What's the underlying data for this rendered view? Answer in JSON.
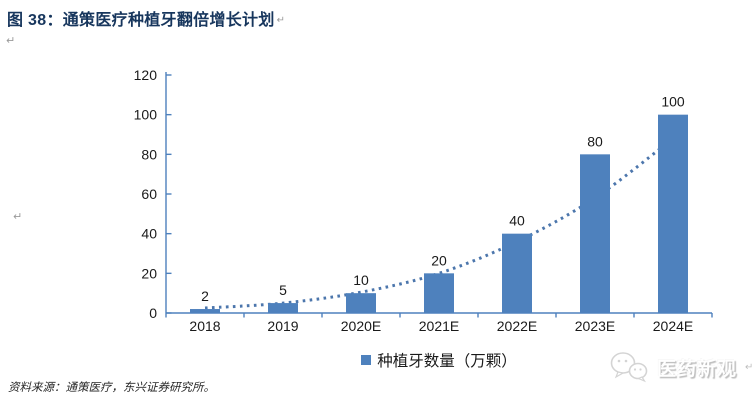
{
  "header": {
    "title": "图 38：通策医疗种植牙翻倍增长计划"
  },
  "marks": {
    "return_mark": "↵"
  },
  "chart_data": {
    "type": "bar",
    "title": "通策医疗种植牙翻倍增长计划",
    "categories": [
      "2018",
      "2019",
      "2020E",
      "2021E",
      "2022E",
      "2023E",
      "2024E"
    ],
    "series": [
      {
        "name": "种植牙数量（万颗）",
        "type": "bar",
        "values": [
          2,
          5,
          10,
          20,
          40,
          80,
          100
        ]
      },
      {
        "name": "增长趋势线（虚线，数值估读）",
        "type": "dotted-line",
        "values": [
          2.5,
          5,
          10.5,
          20,
          36,
          58,
          88
        ]
      }
    ],
    "data_labels": [
      "2",
      "5",
      "10",
      "20",
      "40",
      "80",
      "100"
    ],
    "xlabel": "",
    "ylabel": "",
    "ylim": [
      0,
      120
    ],
    "ytick_step": 20,
    "yticks": [
      0,
      20,
      40,
      60,
      80,
      100,
      120
    ],
    "grid": false,
    "legend": [
      "种植牙数量（万颗）"
    ],
    "legend_position": "bottom-center"
  },
  "legend": {
    "label": "种植牙数量（万颗）"
  },
  "colors": {
    "bar": "#4E81BD",
    "trend": "#4C76AC",
    "axis": "#4E81BD",
    "title": "#17365D",
    "label_text": "#1a1a1a",
    "watermark_gray": "#c9c9c9"
  },
  "source": {
    "text": "资料来源：通策医疗，东兴证券研究所。"
  },
  "watermark": {
    "text": "医药新观",
    "icon": "wechat-bubbles-icon"
  }
}
